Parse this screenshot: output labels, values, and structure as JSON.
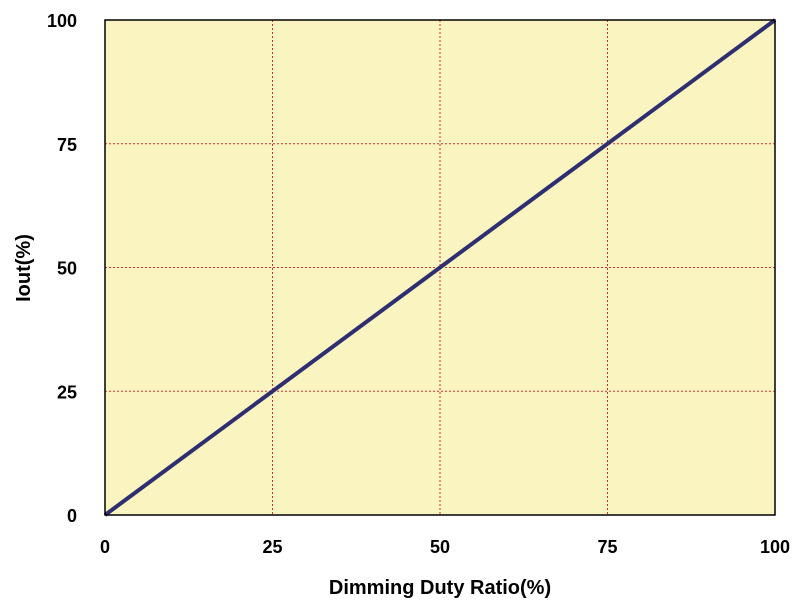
{
  "chart_data": {
    "type": "line",
    "title": "",
    "xlabel": "Dimming Duty Ratio(%)",
    "ylabel": "Iout(%)",
    "xlim": [
      0,
      100
    ],
    "ylim": [
      0,
      100
    ],
    "xticks": [
      0,
      25,
      50,
      75,
      100
    ],
    "yticks": [
      0,
      25,
      50,
      75,
      100
    ],
    "xtick_labels": [
      "0",
      "25",
      "50",
      "75",
      "100"
    ],
    "ytick_labels": [
      "0",
      "25",
      "50",
      "75",
      "100"
    ],
    "grid": true,
    "grid_style": "dotted",
    "legend": "none",
    "colors": {
      "plot_background": "#FAF5C0",
      "grid": "#D03030",
      "line": "#2E2E70",
      "frame": "#000000"
    },
    "series": [
      {
        "x": [
          0,
          25,
          50,
          75,
          100
        ],
        "y": [
          0,
          25,
          50,
          75,
          100
        ]
      }
    ]
  }
}
